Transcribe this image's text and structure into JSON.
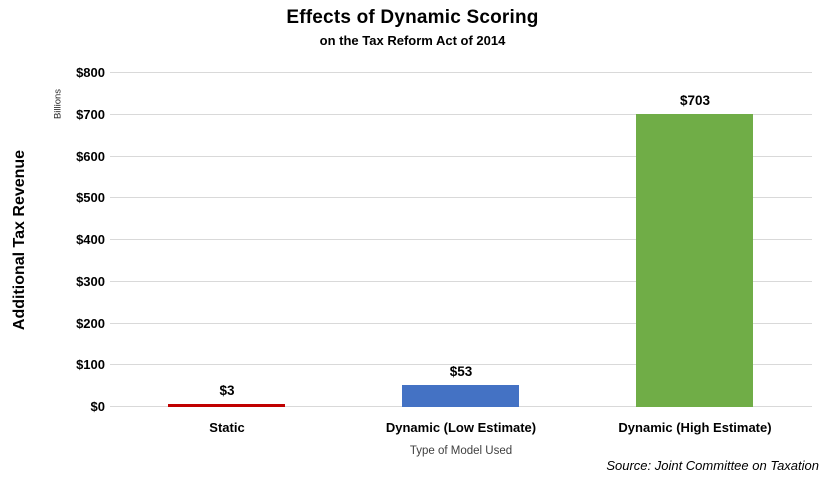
{
  "header": {
    "title": "Effects of Dynamic Scoring",
    "subtitle": "on the Tax Reform Act of 2014"
  },
  "axes": {
    "y_title": "Additional Tax Revenue",
    "y_unit": "Billions",
    "x_title": "Type of Model Used"
  },
  "footer": {
    "source": "Source: Joint Committee on Taxation"
  },
  "colors": {
    "gridline": "#d9d9d9",
    "static_bar": "#c00000",
    "dynamic_low_bar": "#4472c4",
    "dynamic_high_bar": "#70ad47",
    "text": "#000000",
    "x_axis_title_text": "#404040"
  },
  "chart_data": {
    "type": "bar",
    "title": "Effects of Dynamic Scoring",
    "subtitle": "on the Tax Reform Act of 2014",
    "categories": [
      "Static",
      "Dynamic (Low Estimate)",
      "Dynamic (High Estimate)"
    ],
    "values": [
      3,
      53,
      703
    ],
    "data_labels": [
      "$3",
      "$53",
      "$703"
    ],
    "bar_colors": [
      "#c00000",
      "#4472c4",
      "#70ad47"
    ],
    "xlabel": "Type of Model Used",
    "ylabel": "Additional Tax Revenue",
    "y_unit": "Billions",
    "ylim": [
      0,
      800
    ],
    "ytick_interval": 100,
    "ytick_labels": [
      "$0",
      "$100",
      "$200",
      "$300",
      "$400",
      "$500",
      "$600",
      "$700",
      "$800"
    ],
    "grid": true,
    "legend": false,
    "source_note": "Source: Joint Committee on Taxation"
  }
}
